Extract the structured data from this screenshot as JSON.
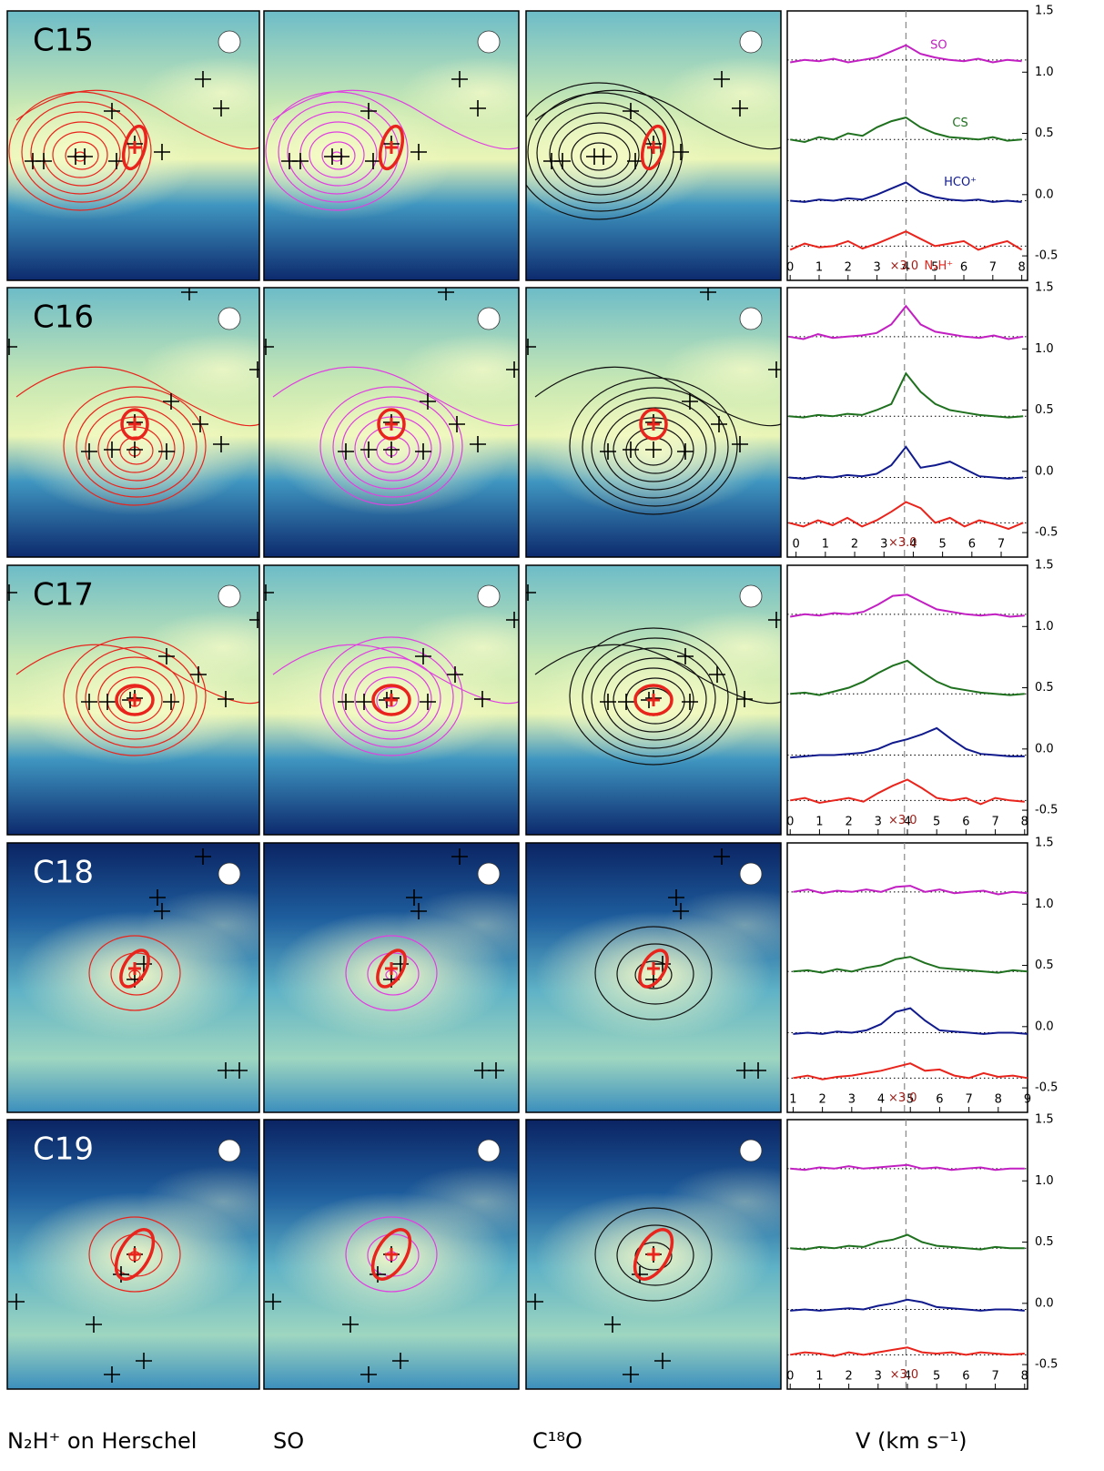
{
  "column_labels": [
    "N₂H⁺ on Herschel",
    "SO",
    "C¹⁸O",
    "V (km s⁻¹)"
  ],
  "chart_data": [
    {
      "type": "line",
      "title": "C15",
      "annotation": "×3.0",
      "reference_velocity": 4,
      "xlim": [
        -0.1,
        8.2
      ],
      "xticks": [
        0,
        1,
        2,
        3,
        4,
        5,
        6,
        7,
        8
      ],
      "ylim": [
        -0.7,
        1.5
      ],
      "yticks": [
        -0.5,
        {
          "value": 0,
          "label": "0.0"
        },
        0.5,
        {
          "value": 1,
          "label": "1.0"
        },
        1.5
      ],
      "x": [
        0,
        0.5,
        1,
        1.5,
        2,
        2.5,
        3,
        3.5,
        4,
        4.5,
        5,
        5.5,
        6,
        6.5,
        7,
        7.5,
        8
      ],
      "series": [
        {
          "name": "SO",
          "color": "#c21fc2",
          "baseline": 1.1,
          "values": [
            1.08,
            1.1,
            1.09,
            1.11,
            1.08,
            1.1,
            1.12,
            1.17,
            1.22,
            1.15,
            1.12,
            1.1,
            1.09,
            1.11,
            1.08,
            1.1,
            1.09
          ]
        },
        {
          "name": "CS",
          "color": "#1f701f",
          "baseline": 0.45,
          "values": [
            0.45,
            0.43,
            0.47,
            0.45,
            0.5,
            0.48,
            0.55,
            0.6,
            0.63,
            0.55,
            0.5,
            0.47,
            0.46,
            0.45,
            0.47,
            0.44,
            0.45
          ]
        },
        {
          "name": "HCO⁺",
          "color": "#101a8c",
          "baseline": -0.05,
          "values": [
            -0.05,
            -0.06,
            -0.04,
            -0.05,
            -0.03,
            -0.04,
            0,
            0.05,
            0.1,
            0.02,
            -0.02,
            -0.04,
            -0.05,
            -0.04,
            -0.06,
            -0.05,
            -0.06
          ]
        },
        {
          "name": "N₂H⁺",
          "color": "#e8241c",
          "baseline": -0.42,
          "values": [
            -0.45,
            -0.4,
            -0.43,
            -0.42,
            -0.38,
            -0.44,
            -0.4,
            -0.35,
            -0.3,
            -0.36,
            -0.42,
            -0.4,
            -0.38,
            -0.45,
            -0.41,
            -0.38,
            -0.45
          ]
        }
      ]
    },
    {
      "type": "line",
      "title": "C16",
      "annotation": "×3.0",
      "reference_velocity": 3.7,
      "xlim": [
        -0.3,
        7.9
      ],
      "xticks": [
        0,
        1,
        2,
        3,
        4,
        5,
        6,
        7
      ],
      "ylim": [
        -0.7,
        1.5
      ],
      "yticks": [
        -0.5,
        {
          "value": 0,
          "label": "0.0"
        },
        0.5,
        {
          "value": 1,
          "label": "1.0"
        },
        1.5
      ],
      "x": [
        -0.25,
        0.25,
        0.75,
        1.25,
        1.75,
        2.25,
        2.75,
        3.25,
        3.75,
        4.25,
        4.75,
        5.25,
        5.75,
        6.25,
        6.75,
        7.25,
        7.75
      ],
      "series": [
        {
          "color": "#c21fc2",
          "baseline": 1.1,
          "values": [
            1.1,
            1.08,
            1.12,
            1.09,
            1.1,
            1.11,
            1.13,
            1.2,
            1.35,
            1.2,
            1.14,
            1.12,
            1.1,
            1.09,
            1.11,
            1.08,
            1.1
          ]
        },
        {
          "color": "#1f701f",
          "baseline": 0.45,
          "values": [
            0.45,
            0.44,
            0.46,
            0.45,
            0.47,
            0.46,
            0.5,
            0.55,
            0.8,
            0.65,
            0.55,
            0.5,
            0.48,
            0.46,
            0.45,
            0.44,
            0.45
          ]
        },
        {
          "color": "#101a8c",
          "baseline": -0.05,
          "values": [
            -0.05,
            -0.06,
            -0.04,
            -0.05,
            -0.03,
            -0.04,
            -0.02,
            0.05,
            0.2,
            0.03,
            0.05,
            0.08,
            0.02,
            -0.04,
            -0.05,
            -0.06,
            -0.05
          ]
        },
        {
          "color": "#e8241c",
          "baseline": -0.42,
          "values": [
            -0.42,
            -0.45,
            -0.4,
            -0.44,
            -0.38,
            -0.45,
            -0.4,
            -0.33,
            -0.25,
            -0.3,
            -0.42,
            -0.38,
            -0.45,
            -0.4,
            -0.43,
            -0.47,
            -0.42
          ]
        }
      ]
    },
    {
      "type": "line",
      "title": "C17",
      "annotation": "×3.0",
      "reference_velocity": 3.9,
      "xlim": [
        -0.1,
        8.1
      ],
      "xticks": [
        0,
        1,
        2,
        3,
        4,
        5,
        6,
        7,
        8
      ],
      "ylim": [
        -0.7,
        1.5
      ],
      "yticks": [
        -0.5,
        {
          "value": 0,
          "label": "0.0"
        },
        0.5,
        {
          "value": 1,
          "label": "1.0"
        },
        1.5
      ],
      "x": [
        0,
        0.5,
        1,
        1.5,
        2,
        2.5,
        3,
        3.5,
        4,
        4.5,
        5,
        5.5,
        6,
        6.5,
        7,
        7.5,
        8
      ],
      "series": [
        {
          "color": "#c21fc2",
          "baseline": 1.1,
          "values": [
            1.08,
            1.1,
            1.09,
            1.11,
            1.1,
            1.12,
            1.18,
            1.25,
            1.26,
            1.2,
            1.14,
            1.12,
            1.1,
            1.09,
            1.1,
            1.08,
            1.09
          ]
        },
        {
          "color": "#1f701f",
          "baseline": 0.45,
          "values": [
            0.45,
            0.46,
            0.44,
            0.47,
            0.5,
            0.55,
            0.62,
            0.68,
            0.72,
            0.63,
            0.55,
            0.5,
            0.48,
            0.46,
            0.45,
            0.44,
            0.45
          ]
        },
        {
          "color": "#101a8c",
          "baseline": -0.05,
          "values": [
            -0.07,
            -0.06,
            -0.05,
            -0.05,
            -0.04,
            -0.03,
            0,
            0.05,
            0.08,
            0.12,
            0.17,
            0.08,
            0,
            -0.04,
            -0.05,
            -0.06,
            -0.06
          ]
        },
        {
          "color": "#e8241c",
          "baseline": -0.42,
          "values": [
            -0.42,
            -0.4,
            -0.44,
            -0.42,
            -0.4,
            -0.43,
            -0.36,
            -0.3,
            -0.25,
            -0.32,
            -0.4,
            -0.42,
            -0.4,
            -0.45,
            -0.4,
            -0.42,
            -0.43
          ]
        }
      ]
    },
    {
      "type": "line",
      "title": "C18",
      "annotation": "×3.0",
      "reference_velocity": 4.8,
      "xlim": [
        0.8,
        9
      ],
      "xticks": [
        1,
        2,
        3,
        4,
        5,
        6,
        7,
        8,
        9
      ],
      "ylim": [
        -0.7,
        1.5
      ],
      "yticks": [
        -0.5,
        {
          "value": 0,
          "label": "0.0"
        },
        0.5,
        {
          "value": 1,
          "label": "1.0"
        },
        1.5
      ],
      "x": [
        1,
        1.5,
        2,
        2.5,
        3,
        3.5,
        4,
        4.5,
        5,
        5.5,
        6,
        6.5,
        7,
        7.5,
        8,
        8.5,
        9
      ],
      "series": [
        {
          "color": "#c21fc2",
          "baseline": 1.1,
          "values": [
            1.1,
            1.12,
            1.09,
            1.11,
            1.1,
            1.12,
            1.1,
            1.14,
            1.15,
            1.1,
            1.12,
            1.09,
            1.1,
            1.11,
            1.08,
            1.1,
            1.09
          ]
        },
        {
          "color": "#1f701f",
          "baseline": 0.45,
          "values": [
            0.45,
            0.46,
            0.44,
            0.47,
            0.45,
            0.48,
            0.5,
            0.55,
            0.57,
            0.52,
            0.48,
            0.47,
            0.46,
            0.45,
            0.44,
            0.46,
            0.45
          ]
        },
        {
          "color": "#101a8c",
          "baseline": -0.05,
          "values": [
            -0.06,
            -0.05,
            -0.06,
            -0.04,
            -0.05,
            -0.03,
            0.02,
            0.12,
            0.15,
            0.05,
            -0.03,
            -0.04,
            -0.05,
            -0.06,
            -0.05,
            -0.05,
            -0.06
          ]
        },
        {
          "color": "#e8241c",
          "baseline": -0.42,
          "values": [
            -0.42,
            -0.4,
            -0.43,
            -0.41,
            -0.4,
            -0.38,
            -0.36,
            -0.33,
            -0.3,
            -0.36,
            -0.35,
            -0.4,
            -0.42,
            -0.38,
            -0.41,
            -0.4,
            -0.42
          ]
        }
      ]
    },
    {
      "type": "line",
      "title": "C19",
      "annotation": "×3.0",
      "reference_velocity": 3.95,
      "xlim": [
        -0.1,
        8.1
      ],
      "xticks": [
        0,
        1,
        2,
        3,
        4,
        5,
        6,
        7,
        8
      ],
      "ylim": [
        -0.7,
        1.5
      ],
      "yticks": [
        -0.5,
        {
          "value": 0,
          "label": "0.0"
        },
        0.5,
        {
          "value": 1,
          "label": "1.0"
        },
        1.5
      ],
      "x": [
        0,
        0.5,
        1,
        1.5,
        2,
        2.5,
        3,
        3.5,
        4,
        4.5,
        5,
        5.5,
        6,
        6.5,
        7,
        7.5,
        8
      ],
      "series": [
        {
          "color": "#c21fc2",
          "baseline": 1.1,
          "values": [
            1.1,
            1.09,
            1.11,
            1.1,
            1.12,
            1.1,
            1.11,
            1.12,
            1.13,
            1.1,
            1.11,
            1.09,
            1.1,
            1.11,
            1.09,
            1.1,
            1.1
          ]
        },
        {
          "color": "#1f701f",
          "baseline": 0.45,
          "values": [
            0.45,
            0.44,
            0.46,
            0.45,
            0.47,
            0.46,
            0.5,
            0.52,
            0.56,
            0.5,
            0.47,
            0.46,
            0.45,
            0.44,
            0.46,
            0.45,
            0.45
          ]
        },
        {
          "color": "#101a8c",
          "baseline": -0.05,
          "values": [
            -0.06,
            -0.05,
            -0.06,
            -0.05,
            -0.04,
            -0.05,
            -0.02,
            0,
            0.03,
            0.01,
            -0.03,
            -0.04,
            -0.05,
            -0.06,
            -0.05,
            -0.05,
            -0.06
          ]
        },
        {
          "color": "#e8241c",
          "baseline": -0.42,
          "values": [
            -0.42,
            -0.4,
            -0.41,
            -0.43,
            -0.4,
            -0.42,
            -0.4,
            -0.38,
            -0.36,
            -0.4,
            -0.41,
            -0.4,
            -0.42,
            -0.4,
            -0.41,
            -0.42,
            -0.41
          ]
        }
      ]
    }
  ]
}
